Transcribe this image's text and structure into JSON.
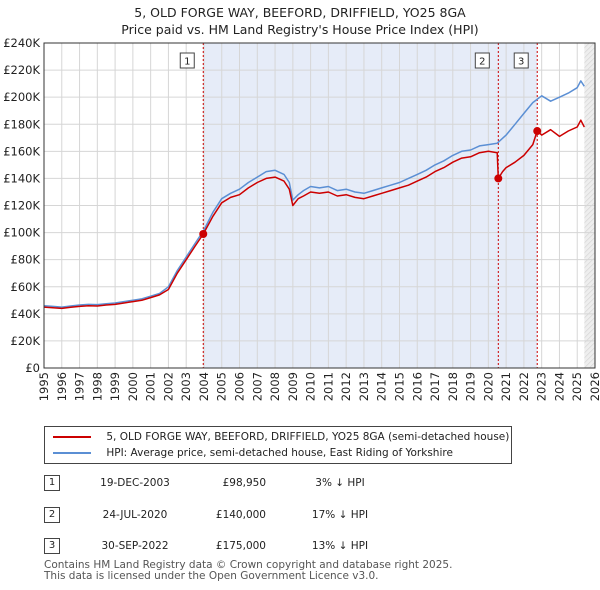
{
  "chart_data": {
    "type": "line",
    "title": "5, OLD FORGE WAY, BEEFORD, DRIFFIELD, YO25 8GA",
    "subtitle": "Price paid vs. HM Land Registry's House Price Index (HPI)",
    "xlim": [
      1995,
      2026
    ],
    "ylim": [
      0,
      240000
    ],
    "x_ticks": [
      "1995",
      "1996",
      "1997",
      "1998",
      "1999",
      "2000",
      "2001",
      "2002",
      "2003",
      "2004",
      "2005",
      "2006",
      "2007",
      "2008",
      "2009",
      "2010",
      "2011",
      "2012",
      "2013",
      "2014",
      "2015",
      "2016",
      "2017",
      "2018",
      "2019",
      "2020",
      "2021",
      "2022",
      "2023",
      "2024",
      "2025",
      "2026"
    ],
    "y_ticks": [
      "£0",
      "£20K",
      "£40K",
      "£60K",
      "£80K",
      "£100K",
      "£120K",
      "£140K",
      "£160K",
      "£180K",
      "£200K",
      "£220K",
      "£240K"
    ],
    "grid": true,
    "series": [
      {
        "name": "5, OLD FORGE WAY, BEEFORD, DRIFFIELD, YO25 8GA (semi-detached house)",
        "color": "#cc0000",
        "x": [
          1995.0,
          1995.5,
          1996.0,
          1996.5,
          1997.0,
          1997.5,
          1998.0,
          1998.5,
          1999.0,
          1999.5,
          2000.0,
          2000.5,
          2001.0,
          2001.5,
          2002.0,
          2002.5,
          2003.0,
          2003.5,
          2003.96,
          2004.5,
          2005.0,
          2005.5,
          2006.0,
          2006.5,
          2007.0,
          2007.5,
          2008.0,
          2008.5,
          2008.8,
          2009.0,
          2009.3,
          2009.6,
          2010.0,
          2010.5,
          2011.0,
          2011.5,
          2012.0,
          2012.5,
          2013.0,
          2013.5,
          2014.0,
          2014.5,
          2015.0,
          2015.5,
          2016.0,
          2016.5,
          2017.0,
          2017.5,
          2018.0,
          2018.5,
          2019.0,
          2019.5,
          2020.0,
          2020.5,
          2020.56,
          2020.8,
          2021.0,
          2021.5,
          2022.0,
          2022.5,
          2022.75,
          2023.0,
          2023.5,
          2024.0,
          2024.5,
          2025.0,
          2025.2,
          2025.4
        ],
        "y": [
          45000,
          44500,
          44000,
          44800,
          45500,
          46000,
          45800,
          46500,
          47000,
          48000,
          49000,
          50000,
          52000,
          54000,
          58000,
          70000,
          80000,
          90000,
          98950,
          112000,
          122000,
          126000,
          128000,
          133000,
          137000,
          140000,
          141000,
          138000,
          132000,
          120000,
          125000,
          127000,
          130000,
          129000,
          130000,
          127000,
          128000,
          126000,
          125000,
          127000,
          129000,
          131000,
          133000,
          135000,
          138000,
          141000,
          145000,
          148000,
          152000,
          155000,
          156000,
          159000,
          160000,
          159000,
          140000,
          145000,
          148000,
          152000,
          157000,
          165000,
          175000,
          172000,
          176000,
          171000,
          175000,
          178000,
          183000,
          178000
        ]
      },
      {
        "name": "HPI: Average price, semi-detached house, East Riding of Yorkshire",
        "color": "#5b8fd4",
        "x": [
          1995.0,
          1995.5,
          1996.0,
          1996.5,
          1997.0,
          1997.5,
          1998.0,
          1998.5,
          1999.0,
          1999.5,
          2000.0,
          2000.5,
          2001.0,
          2001.5,
          2002.0,
          2002.5,
          2003.0,
          2003.5,
          2004.0,
          2004.5,
          2005.0,
          2005.5,
          2006.0,
          2006.5,
          2007.0,
          2007.5,
          2008.0,
          2008.5,
          2008.8,
          2009.0,
          2009.3,
          2009.6,
          2010.0,
          2010.5,
          2011.0,
          2011.5,
          2012.0,
          2012.5,
          2013.0,
          2013.5,
          2014.0,
          2014.5,
          2015.0,
          2015.5,
          2016.0,
          2016.5,
          2017.0,
          2017.5,
          2018.0,
          2018.5,
          2019.0,
          2019.5,
          2020.0,
          2020.5,
          2021.0,
          2021.5,
          2022.0,
          2022.5,
          2023.0,
          2023.5,
          2024.0,
          2024.5,
          2025.0,
          2025.2,
          2025.4
        ],
        "y": [
          46000,
          45500,
          45000,
          45800,
          46500,
          47000,
          46800,
          47500,
          48000,
          49000,
          50000,
          51000,
          53000,
          55000,
          60000,
          72000,
          82000,
          92000,
          102000,
          115000,
          125000,
          129000,
          132000,
          137000,
          141000,
          145000,
          146000,
          143000,
          137000,
          124000,
          128000,
          131000,
          134000,
          133000,
          134000,
          131000,
          132000,
          130000,
          129000,
          131000,
          133000,
          135000,
          137000,
          140000,
          143000,
          146000,
          150000,
          153000,
          157000,
          160000,
          161000,
          164000,
          165000,
          166000,
          172000,
          180000,
          188000,
          196000,
          201000,
          197000,
          200000,
          203000,
          207000,
          212000,
          208000
        ]
      }
    ],
    "sales": [
      {
        "label": "1",
        "x": 2003.96,
        "y": 98950,
        "date": "19-DEC-2003",
        "price": "£98,950",
        "hpi": "3% ↓ HPI"
      },
      {
        "label": "2",
        "x": 2020.56,
        "y": 140000,
        "date": "24-JUL-2020",
        "price": "£140,000",
        "hpi": "17% ↓ HPI"
      },
      {
        "label": "3",
        "x": 2022.75,
        "y": 175000,
        "date": "30-SEP-2022",
        "price": "£175,000",
        "hpi": "13% ↓ HPI"
      }
    ],
    "future_shade_from": 2025.4
  },
  "legend": {
    "property_label": "5, OLD FORGE WAY, BEEFORD, DRIFFIELD, YO25 8GA (semi-detached house)",
    "hpi_label": "HPI: Average price, semi-detached house, East Riding of Yorkshire"
  },
  "footer": {
    "line1": "Contains HM Land Registry data © Crown copyright and database right 2025.",
    "line2": "This data is licensed under the Open Government Licence v3.0."
  },
  "colors": {
    "property": "#cc0000",
    "hpi": "#5b8fd4",
    "band": "#e6ecf8",
    "grid": "#d6d6d6"
  }
}
